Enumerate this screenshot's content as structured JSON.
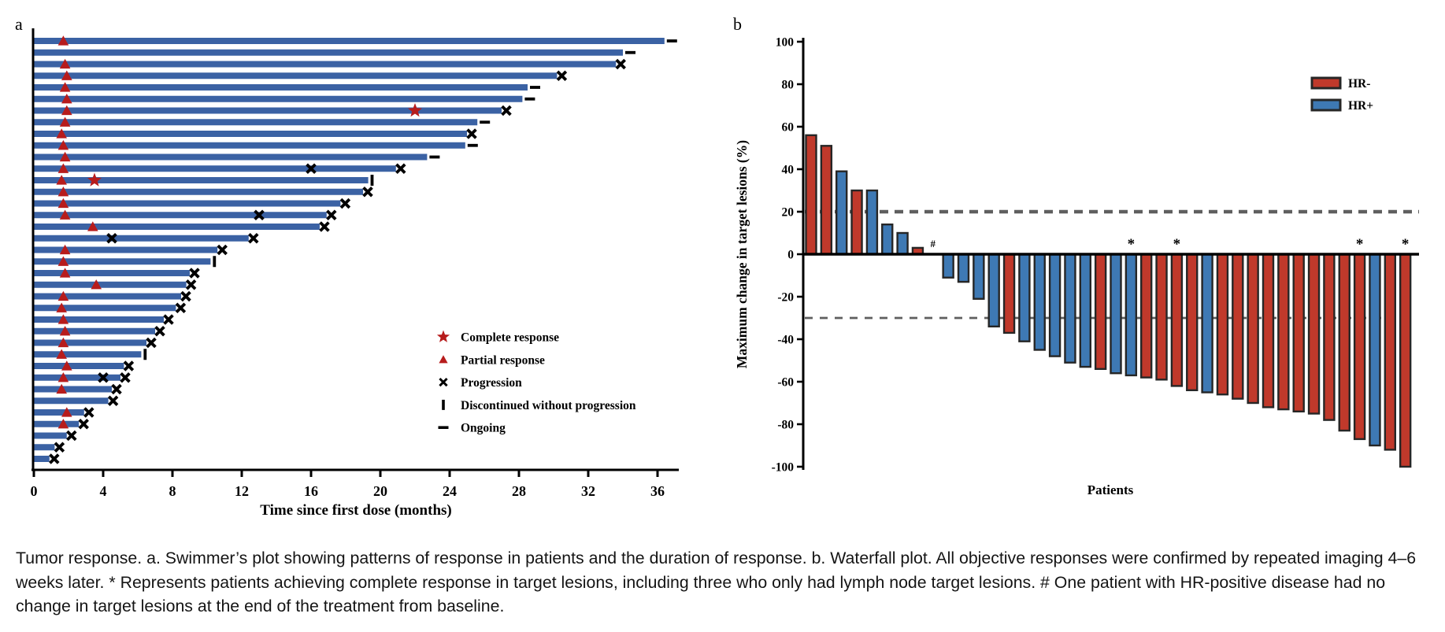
{
  "caption": "Tumor response. a. Swimmer’s plot showing patterns of response in patients and the duration of response. b. Waterfall plot. All objective responses were confirmed by repeated imaging 4–6 weeks later. * Represents patients achieving complete response in target lesions, including three who only had lymph node target lesions. # One patient with HR-positive disease had no change in target lesions at the end of the treatment from baseline.",
  "colors": {
    "swimmer_bar": "#3b62a4",
    "marker_red": "#b71c1c",
    "hr_negative": "#c0392b",
    "hr_positive": "#3e79b4",
    "bar_stroke": "#262626",
    "dashed_line": "#5f5f5f",
    "axis": "#000000"
  },
  "chart_data": [
    {
      "type": "bar",
      "subtype": "swimmer-plot",
      "panel_label": "a",
      "xlabel": "Time since first dose (months)",
      "xlim": [
        0,
        37
      ],
      "x_ticks": [
        0,
        4,
        8,
        12,
        16,
        20,
        24,
        28,
        32,
        36
      ],
      "legend_position": "inside-right",
      "legend": [
        {
          "marker": "star",
          "label": "Complete response"
        },
        {
          "marker": "triangle",
          "label": "Partial response"
        },
        {
          "marker": "x",
          "label": "Progression"
        },
        {
          "marker": "vbar",
          "label": "Discontinued without progression"
        },
        {
          "marker": "dash",
          "label": "Ongoing"
        }
      ],
      "patients": [
        {
          "duration_months": 36.4,
          "end_marker": "ongoing",
          "partial_response_month": 1.7,
          "complete_response_month": null,
          "extra_progression_month": null
        },
        {
          "duration_months": 34.0,
          "end_marker": "ongoing",
          "partial_response_month": null,
          "complete_response_month": null,
          "extra_progression_month": null
        },
        {
          "duration_months": 33.6,
          "end_marker": "progression",
          "partial_response_month": 1.8,
          "complete_response_month": null,
          "extra_progression_month": null
        },
        {
          "duration_months": 30.2,
          "end_marker": "progression",
          "partial_response_month": 1.9,
          "complete_response_month": null,
          "extra_progression_month": null
        },
        {
          "duration_months": 28.5,
          "end_marker": "ongoing",
          "partial_response_month": 1.8,
          "complete_response_month": null,
          "extra_progression_month": null
        },
        {
          "duration_months": 28.2,
          "end_marker": "ongoing",
          "partial_response_month": 1.9,
          "complete_response_month": null,
          "extra_progression_month": null
        },
        {
          "duration_months": 27.0,
          "end_marker": "progression",
          "partial_response_month": 1.9,
          "complete_response_month": 22.0,
          "extra_progression_month": null
        },
        {
          "duration_months": 25.6,
          "end_marker": "ongoing",
          "partial_response_month": 1.8,
          "complete_response_month": null,
          "extra_progression_month": null
        },
        {
          "duration_months": 25.0,
          "end_marker": "progression",
          "partial_response_month": 1.6,
          "complete_response_month": null,
          "extra_progression_month": null
        },
        {
          "duration_months": 24.9,
          "end_marker": "ongoing",
          "partial_response_month": 1.7,
          "complete_response_month": null,
          "extra_progression_month": null
        },
        {
          "duration_months": 22.7,
          "end_marker": "ongoing",
          "partial_response_month": 1.8,
          "complete_response_month": null,
          "extra_progression_month": null
        },
        {
          "duration_months": 20.9,
          "end_marker": "progression",
          "partial_response_month": 1.7,
          "complete_response_month": null,
          "extra_progression_month": 16.0
        },
        {
          "duration_months": 19.3,
          "end_marker": "discontinued",
          "partial_response_month": 1.6,
          "complete_response_month": 3.5,
          "extra_progression_month": null
        },
        {
          "duration_months": 19.0,
          "end_marker": "progression",
          "partial_response_month": 1.7,
          "complete_response_month": null,
          "extra_progression_month": null
        },
        {
          "duration_months": 17.7,
          "end_marker": "progression",
          "partial_response_month": 1.7,
          "complete_response_month": null,
          "extra_progression_month": null
        },
        {
          "duration_months": 16.9,
          "end_marker": "progression",
          "partial_response_month": 1.8,
          "complete_response_month": null,
          "extra_progression_month": 13.0
        },
        {
          "duration_months": 16.5,
          "end_marker": "progression",
          "partial_response_month": 3.4,
          "complete_response_month": null,
          "extra_progression_month": null
        },
        {
          "duration_months": 12.4,
          "end_marker": "progression",
          "partial_response_month": null,
          "complete_response_month": null,
          "extra_progression_month": 4.5
        },
        {
          "duration_months": 10.6,
          "end_marker": "progression",
          "partial_response_month": 1.8,
          "complete_response_month": null,
          "extra_progression_month": null
        },
        {
          "duration_months": 10.2,
          "end_marker": "discontinued",
          "partial_response_month": 1.7,
          "complete_response_month": null,
          "extra_progression_month": null
        },
        {
          "duration_months": 9.0,
          "end_marker": "progression",
          "partial_response_month": 1.8,
          "complete_response_month": null,
          "extra_progression_month": null
        },
        {
          "duration_months": 8.8,
          "end_marker": "progression",
          "partial_response_month": 3.6,
          "complete_response_month": null,
          "extra_progression_month": null
        },
        {
          "duration_months": 8.5,
          "end_marker": "progression",
          "partial_response_month": 1.7,
          "complete_response_month": null,
          "extra_progression_month": null
        },
        {
          "duration_months": 8.2,
          "end_marker": "progression",
          "partial_response_month": 1.6,
          "complete_response_month": null,
          "extra_progression_month": null
        },
        {
          "duration_months": 7.5,
          "end_marker": "progression",
          "partial_response_month": 1.7,
          "complete_response_month": null,
          "extra_progression_month": null
        },
        {
          "duration_months": 7.0,
          "end_marker": "progression",
          "partial_response_month": 1.8,
          "complete_response_month": null,
          "extra_progression_month": null
        },
        {
          "duration_months": 6.5,
          "end_marker": "progression",
          "partial_response_month": 1.7,
          "complete_response_month": null,
          "extra_progression_month": null
        },
        {
          "duration_months": 6.2,
          "end_marker": "discontinued",
          "partial_response_month": 1.6,
          "complete_response_month": null,
          "extra_progression_month": null
        },
        {
          "duration_months": 5.2,
          "end_marker": "progression",
          "partial_response_month": 1.9,
          "complete_response_month": null,
          "extra_progression_month": null
        },
        {
          "duration_months": 5.0,
          "end_marker": "progression",
          "partial_response_month": 1.7,
          "complete_response_month": null,
          "extra_progression_month": 4.0
        },
        {
          "duration_months": 4.5,
          "end_marker": "progression",
          "partial_response_month": 1.6,
          "complete_response_month": null,
          "extra_progression_month": null
        },
        {
          "duration_months": 4.3,
          "end_marker": "progression",
          "partial_response_month": null,
          "complete_response_month": null,
          "extra_progression_month": null
        },
        {
          "duration_months": 2.9,
          "end_marker": "progression",
          "partial_response_month": 1.9,
          "complete_response_month": null,
          "extra_progression_month": null
        },
        {
          "duration_months": 2.6,
          "end_marker": "progression",
          "partial_response_month": 1.7,
          "complete_response_month": null,
          "extra_progression_month": null
        },
        {
          "duration_months": 1.9,
          "end_marker": "progression",
          "partial_response_month": null,
          "complete_response_month": null,
          "extra_progression_month": null
        },
        {
          "duration_months": 1.2,
          "end_marker": "progression",
          "partial_response_month": null,
          "complete_response_month": null,
          "extra_progression_month": null
        },
        {
          "duration_months": 0.9,
          "end_marker": "progression",
          "partial_response_month": null,
          "complete_response_month": null,
          "extra_progression_month": null
        }
      ]
    },
    {
      "type": "bar",
      "subtype": "waterfall-plot",
      "panel_label": "b",
      "ylabel": "Maximum change in target lesions (%)",
      "xlabel": "Patients",
      "ylim": [
        -100,
        100
      ],
      "y_ticks": [
        100,
        80,
        60,
        40,
        20,
        0,
        -20,
        -40,
        -60,
        -80,
        -100
      ],
      "reference_lines": [
        20,
        -30
      ],
      "legend_position": "top-right",
      "legend": [
        {
          "label": "HR-",
          "group": "HR-"
        },
        {
          "label": "HR+",
          "group": "HR+"
        }
      ],
      "bars": [
        {
          "value": 56,
          "group": "HR-",
          "mark": ""
        },
        {
          "value": 51,
          "group": "HR-",
          "mark": ""
        },
        {
          "value": 39,
          "group": "HR+",
          "mark": ""
        },
        {
          "value": 30,
          "group": "HR-",
          "mark": ""
        },
        {
          "value": 30,
          "group": "HR+",
          "mark": ""
        },
        {
          "value": 14,
          "group": "HR+",
          "mark": ""
        },
        {
          "value": 10,
          "group": "HR+",
          "mark": ""
        },
        {
          "value": 3,
          "group": "HR-",
          "mark": ""
        },
        {
          "value": 0,
          "group": "HR+",
          "mark": "#"
        },
        {
          "value": -11,
          "group": "HR+",
          "mark": ""
        },
        {
          "value": -13,
          "group": "HR+",
          "mark": ""
        },
        {
          "value": -21,
          "group": "HR+",
          "mark": ""
        },
        {
          "value": -34,
          "group": "HR+",
          "mark": ""
        },
        {
          "value": -37,
          "group": "HR-",
          "mark": ""
        },
        {
          "value": -41,
          "group": "HR+",
          "mark": ""
        },
        {
          "value": -45,
          "group": "HR+",
          "mark": ""
        },
        {
          "value": -48,
          "group": "HR+",
          "mark": ""
        },
        {
          "value": -51,
          "group": "HR+",
          "mark": ""
        },
        {
          "value": -53,
          "group": "HR+",
          "mark": ""
        },
        {
          "value": -54,
          "group": "HR-",
          "mark": ""
        },
        {
          "value": -56,
          "group": "HR+",
          "mark": ""
        },
        {
          "value": -57,
          "group": "HR+",
          "mark": "*"
        },
        {
          "value": -58,
          "group": "HR-",
          "mark": ""
        },
        {
          "value": -59,
          "group": "HR-",
          "mark": ""
        },
        {
          "value": -62,
          "group": "HR-",
          "mark": "*"
        },
        {
          "value": -64,
          "group": "HR-",
          "mark": ""
        },
        {
          "value": -65,
          "group": "HR+",
          "mark": ""
        },
        {
          "value": -66,
          "group": "HR-",
          "mark": ""
        },
        {
          "value": -68,
          "group": "HR-",
          "mark": ""
        },
        {
          "value": -70,
          "group": "HR-",
          "mark": ""
        },
        {
          "value": -72,
          "group": "HR-",
          "mark": ""
        },
        {
          "value": -73,
          "group": "HR-",
          "mark": ""
        },
        {
          "value": -74,
          "group": "HR-",
          "mark": ""
        },
        {
          "value": -75,
          "group": "HR-",
          "mark": ""
        },
        {
          "value": -78,
          "group": "HR-",
          "mark": ""
        },
        {
          "value": -83,
          "group": "HR-",
          "mark": ""
        },
        {
          "value": -87,
          "group": "HR-",
          "mark": "*"
        },
        {
          "value": -90,
          "group": "HR+",
          "mark": ""
        },
        {
          "value": -92,
          "group": "HR-",
          "mark": ""
        },
        {
          "value": -100,
          "group": "HR-",
          "mark": "*"
        }
      ]
    }
  ]
}
